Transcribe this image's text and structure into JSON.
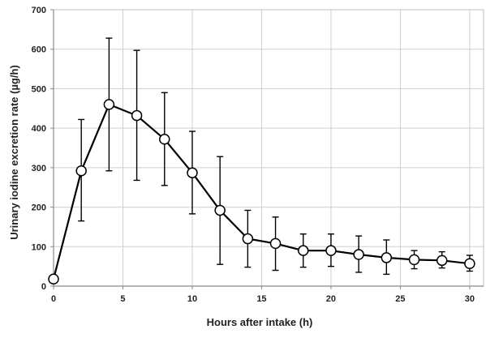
{
  "chart_data": {
    "type": "line",
    "title": "",
    "xlabel": "Hours after intake (h)",
    "ylabel": "Urinary iodine excretion rate (µg/h)",
    "xlim": [
      0,
      31
    ],
    "ylim": [
      0,
      700
    ],
    "xticks": [
      0,
      5,
      10,
      15,
      20,
      25,
      30
    ],
    "yticks": [
      0,
      100,
      200,
      300,
      400,
      500,
      600,
      700
    ],
    "grid": true,
    "legend": "none",
    "marker": "open-circle",
    "line_color": "#000000",
    "series": [
      {
        "x": [
          0,
          2,
          4,
          6,
          8,
          10,
          12,
          14,
          16,
          18,
          20,
          22,
          24,
          26,
          28,
          30
        ],
        "y": [
          18,
          292,
          460,
          432,
          372,
          287,
          192,
          120,
          108,
          90,
          90,
          80,
          72,
          67,
          65,
          57
        ],
        "err_low": [
          18,
          165,
          292,
          268,
          255,
          183,
          55,
          48,
          40,
          48,
          50,
          35,
          30,
          44,
          46,
          38
        ],
        "err_high": [
          18,
          422,
          628,
          597,
          490,
          392,
          328,
          192,
          175,
          132,
          132,
          127,
          117,
          90,
          87,
          78
        ]
      }
    ]
  }
}
